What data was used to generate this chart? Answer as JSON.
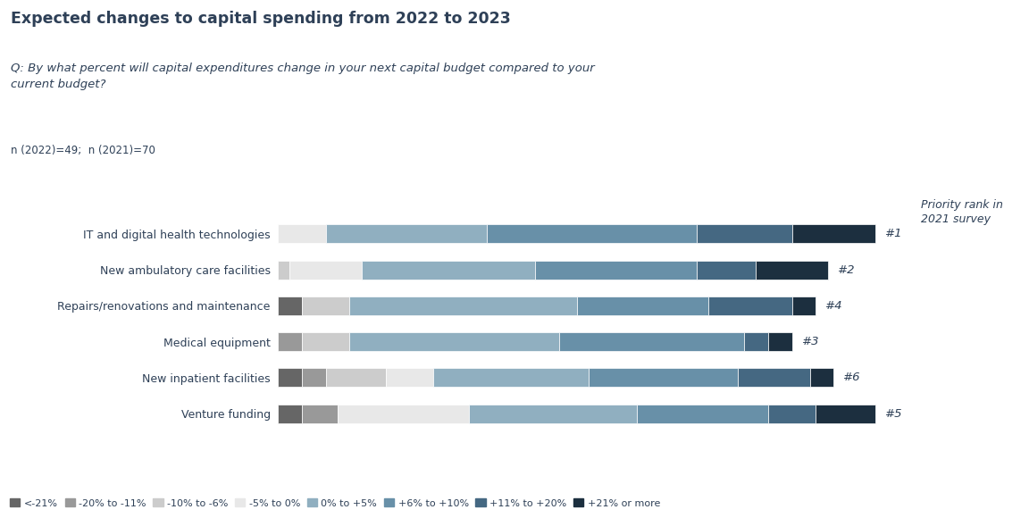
{
  "title": "Expected changes to capital spending from 2022 to 2023",
  "subtitle": "Q: By what percent will capital expenditures change in your next capital budget compared to your\ncurrent budget?",
  "sample_note": "n (2022)=49;  n (2021)=70",
  "priority_label": "Priority rank in\n2021 survey",
  "categories": [
    "IT and digital health technologies",
    "New ambulatory care facilities",
    "Repairs/renovations and maintenance",
    "Medical equipment",
    "New inpatient facilities",
    "Venture funding"
  ],
  "priority_ranks": [
    "#1",
    "#2",
    "#4",
    "#3",
    "#6",
    "#5"
  ],
  "legend_labels": [
    "<-21%",
    "-20% to -11%",
    "-10% to -6%",
    "-5% to 0%",
    "0% to +5%",
    "+6% to +10%",
    "+11% to +20%",
    "+21% or more"
  ],
  "colors": [
    "#666666",
    "#999999",
    "#cccccc",
    "#e8e8e8",
    "#90afc0",
    "#6890a8",
    "#456882",
    "#1c2f3f"
  ],
  "data": [
    [
      0,
      0,
      0,
      8,
      27,
      35,
      16,
      14
    ],
    [
      0,
      0,
      2,
      12,
      29,
      27,
      10,
      12
    ],
    [
      4,
      0,
      8,
      0,
      38,
      22,
      14,
      4
    ],
    [
      0,
      4,
      8,
      0,
      35,
      31,
      4,
      4
    ],
    [
      4,
      4,
      10,
      8,
      26,
      25,
      12,
      4
    ],
    [
      4,
      6,
      0,
      22,
      28,
      22,
      8,
      10
    ]
  ],
  "title_fontsize": 12.5,
  "subtitle_fontsize": 9.5,
  "label_fontsize": 9,
  "legend_fontsize": 8,
  "rank_fontsize": 9.5,
  "bar_height": 0.52,
  "fig_bg": "#ffffff",
  "text_color": "#2e4057"
}
